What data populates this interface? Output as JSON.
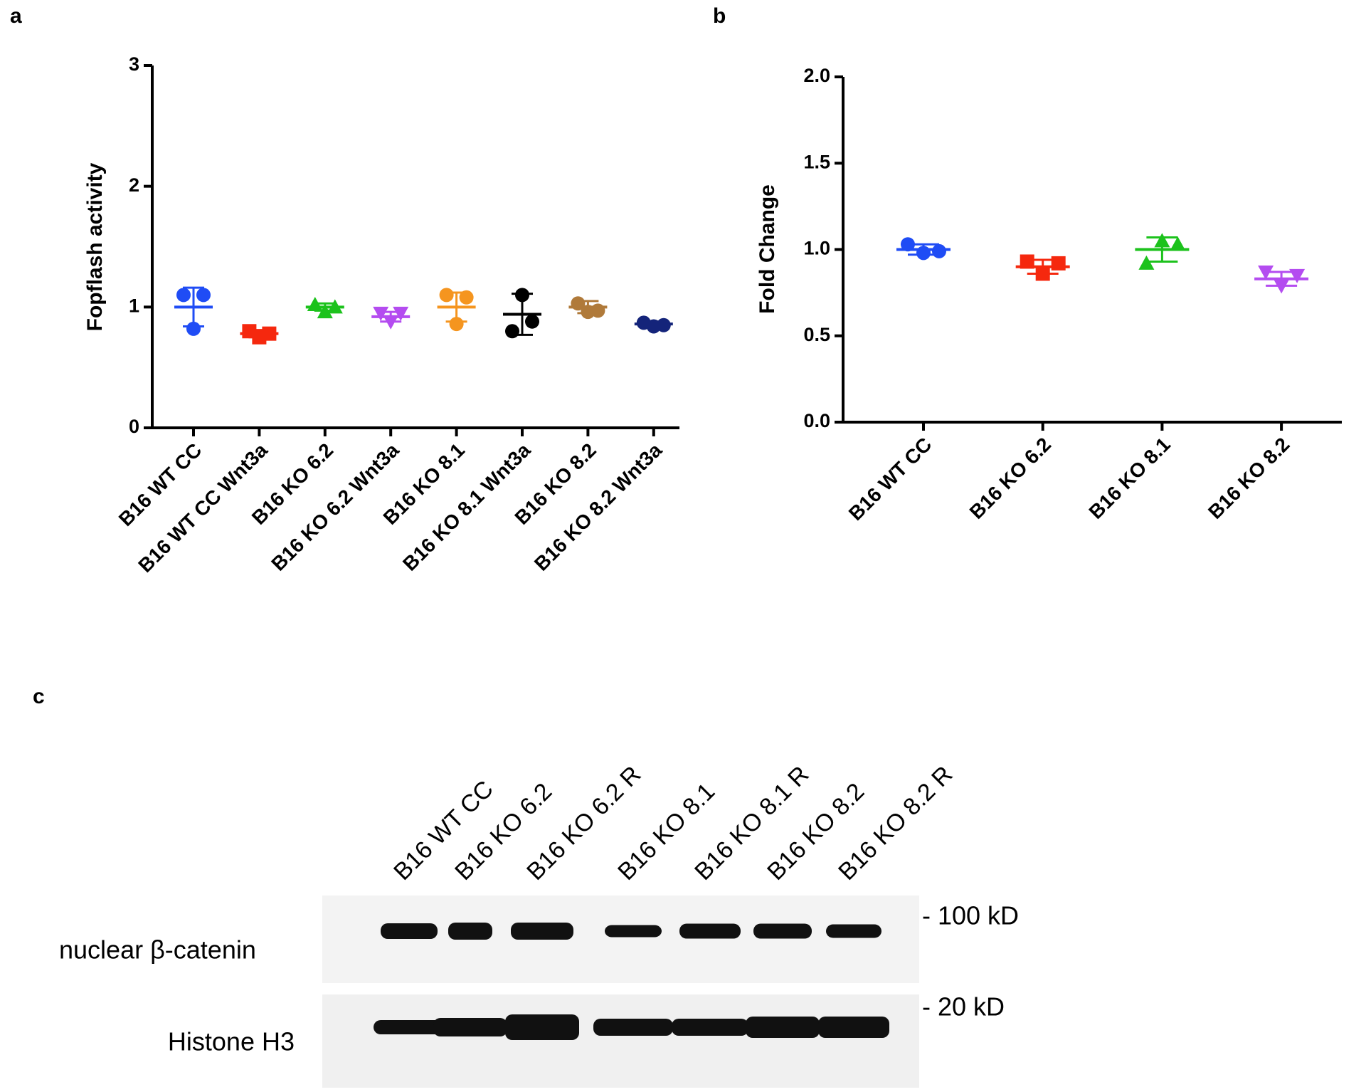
{
  "chart_data": [
    {
      "type": "scatter",
      "panel": "a",
      "ylabel": "Fopflash activity",
      "categories": [
        "B16 WT CC",
        "B16 WT CC Wnt3a",
        "B16 KO 6.2",
        "B16 KO 6.2 Wnt3a",
        "B16 KO 8.1",
        "B16 KO 8.1 Wnt3a",
        "B16 KO 8.2",
        "B16 KO 8.2 Wnt3a"
      ],
      "colors": [
        "#1f4cf5",
        "#f5280e",
        "#1cc21c",
        "#b44cf0",
        "#f5951f",
        "#000000",
        "#b07a3a",
        "#14247a"
      ],
      "markers": [
        "circle",
        "square",
        "triangle",
        "triangle-down",
        "circle",
        "circle",
        "circle",
        "circle"
      ],
      "points": [
        [
          1.1,
          0.82,
          1.1
        ],
        [
          0.8,
          0.75,
          0.78
        ],
        [
          1.02,
          0.96,
          1.0
        ],
        [
          0.95,
          0.88,
          0.95
        ],
        [
          1.1,
          0.86,
          1.08
        ],
        [
          0.8,
          1.1,
          0.88
        ],
        [
          1.03,
          0.96,
          0.97
        ],
        [
          0.87,
          0.84,
          0.85
        ]
      ],
      "mean": [
        1.0,
        0.78,
        1.0,
        0.92,
        1.0,
        0.94,
        1.0,
        0.86
      ],
      "sd": [
        0.16,
        0.03,
        0.03,
        0.04,
        0.12,
        0.17,
        0.05,
        0.02
      ],
      "ylim": [
        0,
        3
      ],
      "yticks": [
        0,
        1,
        2,
        3
      ]
    },
    {
      "type": "scatter",
      "panel": "b",
      "ylabel": "Fold Change",
      "categories": [
        "B16 WT CC",
        "B16 KO 6.2",
        "B16 KO 8.1",
        "B16 KO 8.2"
      ],
      "colors": [
        "#1f4cf5",
        "#f5280e",
        "#1cc21c",
        "#b44cf0"
      ],
      "markers": [
        "circle",
        "square",
        "triangle",
        "triangle-down"
      ],
      "points": [
        [
          1.03,
          0.98,
          0.99
        ],
        [
          0.93,
          0.86,
          0.92
        ],
        [
          0.92,
          1.05,
          1.03
        ],
        [
          0.87,
          0.79,
          0.85
        ]
      ],
      "mean": [
        1.0,
        0.9,
        1.0,
        0.83
      ],
      "sd": [
        0.03,
        0.04,
        0.07,
        0.04
      ],
      "ylim": [
        0,
        2
      ],
      "yticks": [
        {
          "value": 0,
          "label": "0.0"
        },
        0.5,
        {
          "value": 1,
          "label": "1.0"
        },
        1.5,
        {
          "value": 2,
          "label": "2.0"
        }
      ]
    }
  ],
  "blot": {
    "panel": "c",
    "lanes": [
      "B16 WT CC",
      "B16 KO 6.2",
      "B16 KO 6.2 R",
      "B16 KO 8.1",
      "B16 KO 8.1 R",
      "B16 KO 8.2",
      "B16 KO 8.2 R"
    ],
    "rows": [
      "nuclear β-catenin",
      "Histone H3"
    ],
    "sizes": [
      "- 100 kD",
      "- 20 kD"
    ]
  }
}
